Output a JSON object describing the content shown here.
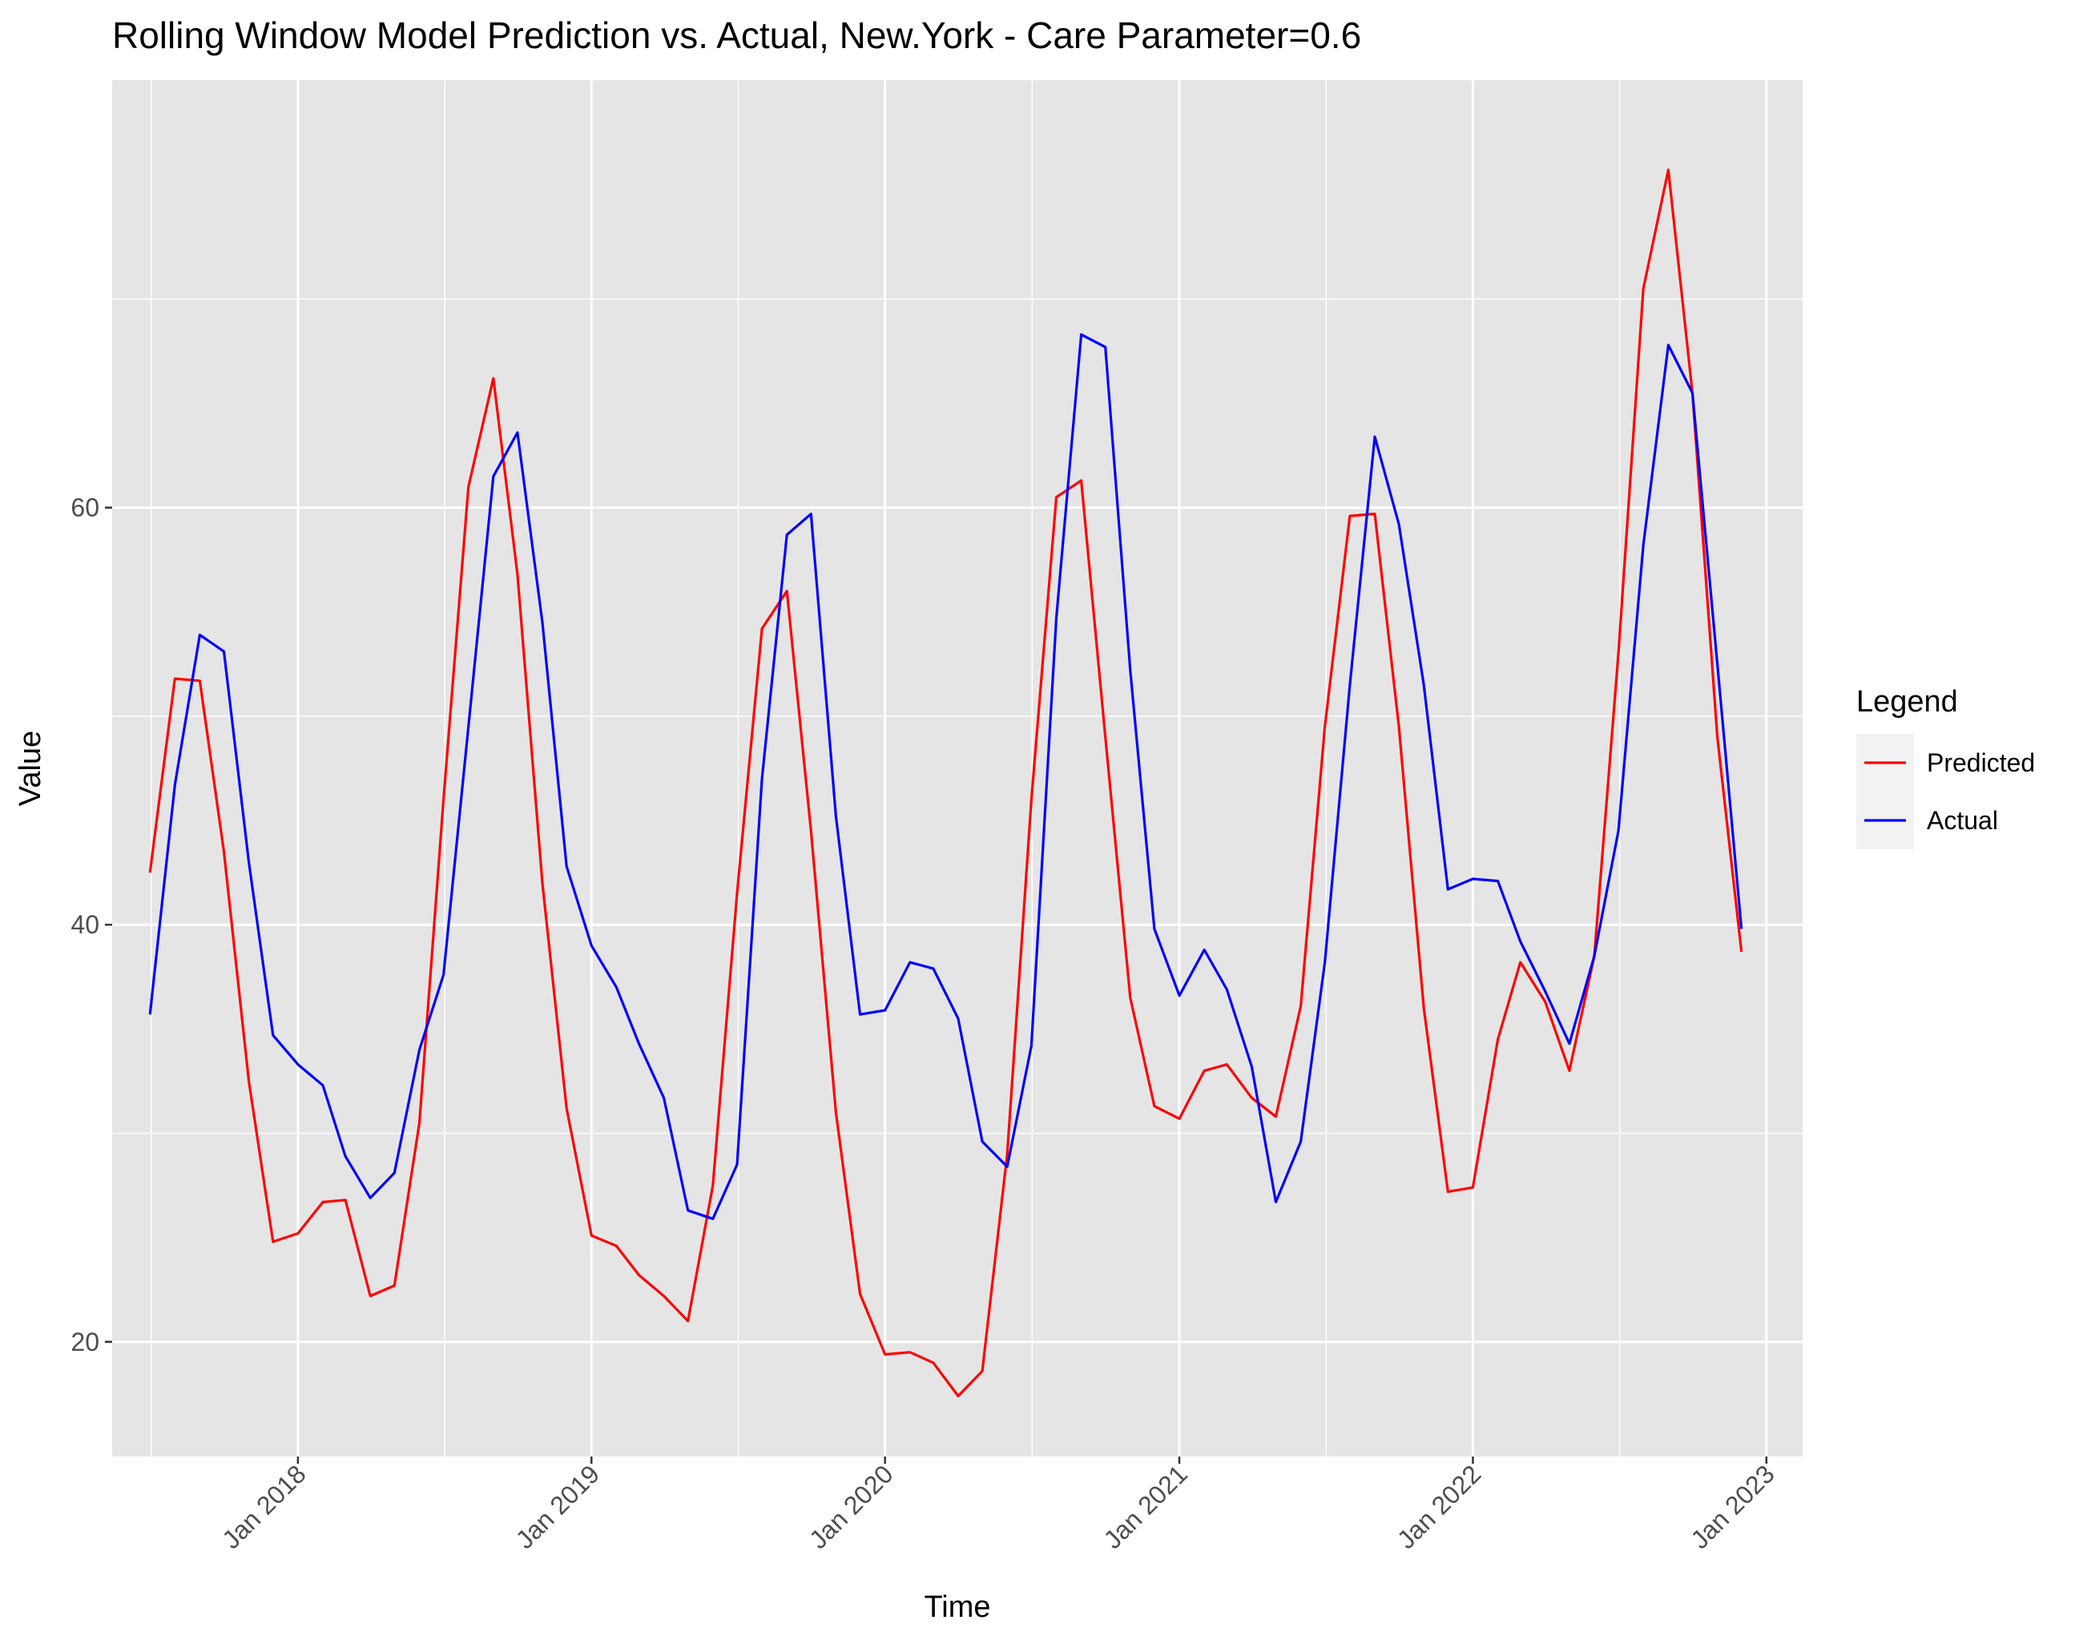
{
  "chart_data": {
    "type": "line",
    "title": "Rolling Window Model Prediction vs. Actual, New.York - Care Parameter=0.6",
    "xlabel": "Time",
    "ylabel": "Value",
    "x_ticks": [
      "Jan 2018",
      "Jan 2019",
      "Jan 2020",
      "Jan 2021",
      "Jan 2022",
      "Jan 2023"
    ],
    "y_ticks": [
      20,
      40,
      60
    ],
    "ylim": [
      14.5,
      80.5
    ],
    "xlim": [
      "2017-05-15",
      "2023-02-15"
    ],
    "grid": true,
    "legend": {
      "title": "Legend",
      "position": "right"
    },
    "x": [
      "2017-07",
      "2017-08",
      "2017-09",
      "2017-10",
      "2017-11",
      "2017-12",
      "2018-01",
      "2018-02",
      "2018-03",
      "2018-04",
      "2018-05",
      "2018-06",
      "2018-07",
      "2018-08",
      "2018-09",
      "2018-10",
      "2018-11",
      "2018-12",
      "2019-01",
      "2019-02",
      "2019-03",
      "2019-04",
      "2019-05",
      "2019-06",
      "2019-07",
      "2019-08",
      "2019-09",
      "2019-10",
      "2019-11",
      "2019-12",
      "2020-01",
      "2020-02",
      "2020-03",
      "2020-04",
      "2020-05",
      "2020-06",
      "2020-07",
      "2020-08",
      "2020-09",
      "2020-10",
      "2020-11",
      "2020-12",
      "2021-01",
      "2021-02",
      "2021-03",
      "2021-04",
      "2021-05",
      "2021-06",
      "2021-07",
      "2021-08",
      "2021-09",
      "2021-10",
      "2021-11",
      "2021-12",
      "2022-01",
      "2022-02",
      "2022-03",
      "2022-04",
      "2022-05",
      "2022-06",
      "2022-07",
      "2022-08",
      "2022-09",
      "2022-10",
      "2022-11",
      "2022-12"
    ],
    "series": [
      {
        "name": "Predicted",
        "color": "#ff0000",
        "values": [
          42.5,
          51.8,
          51.7,
          43.5,
          32.5,
          24.8,
          25.2,
          26.7,
          26.8,
          22.2,
          22.7,
          30.5,
          46.0,
          61.0,
          66.2,
          56.8,
          42.0,
          31.2,
          25.1,
          24.6,
          23.2,
          22.2,
          21.0,
          27.5,
          41.5,
          54.2,
          56.0,
          44.5,
          31.0,
          22.3,
          19.4,
          19.5,
          19.0,
          17.4,
          18.6,
          29.0,
          46.0,
          60.5,
          61.3,
          49.0,
          36.5,
          31.3,
          30.7,
          33.0,
          33.3,
          31.7,
          30.8,
          36.1,
          49.5,
          59.6,
          59.7,
          49.5,
          36.0,
          27.2,
          27.4,
          34.5,
          38.2,
          36.3,
          33.0,
          38.5,
          53.0,
          70.5,
          76.2,
          65.5,
          49.0,
          38.7
        ]
      },
      {
        "name": "Actual",
        "color": "#0000ff",
        "values": [
          35.7,
          46.7,
          53.9,
          53.1,
          43.0,
          34.7,
          33.3,
          32.3,
          28.9,
          26.9,
          28.1,
          34.0,
          37.6,
          49.5,
          61.5,
          63.6,
          54.5,
          42.8,
          39.0,
          37.0,
          34.3,
          31.7,
          26.3,
          25.9,
          28.5,
          47.0,
          58.7,
          59.7,
          45.2,
          35.7,
          35.9,
          38.2,
          37.9,
          35.5,
          29.6,
          28.4,
          34.2,
          54.7,
          68.3,
          67.7,
          52.2,
          39.8,
          36.6,
          38.8,
          36.9,
          33.2,
          26.7,
          29.6,
          38.2,
          51.5,
          63.4,
          59.2,
          51.5,
          41.7,
          42.2,
          42.1,
          39.2,
          36.8,
          34.3,
          38.5,
          44.5,
          58.2,
          67.8,
          65.5,
          52.5,
          39.8
        ]
      }
    ]
  }
}
